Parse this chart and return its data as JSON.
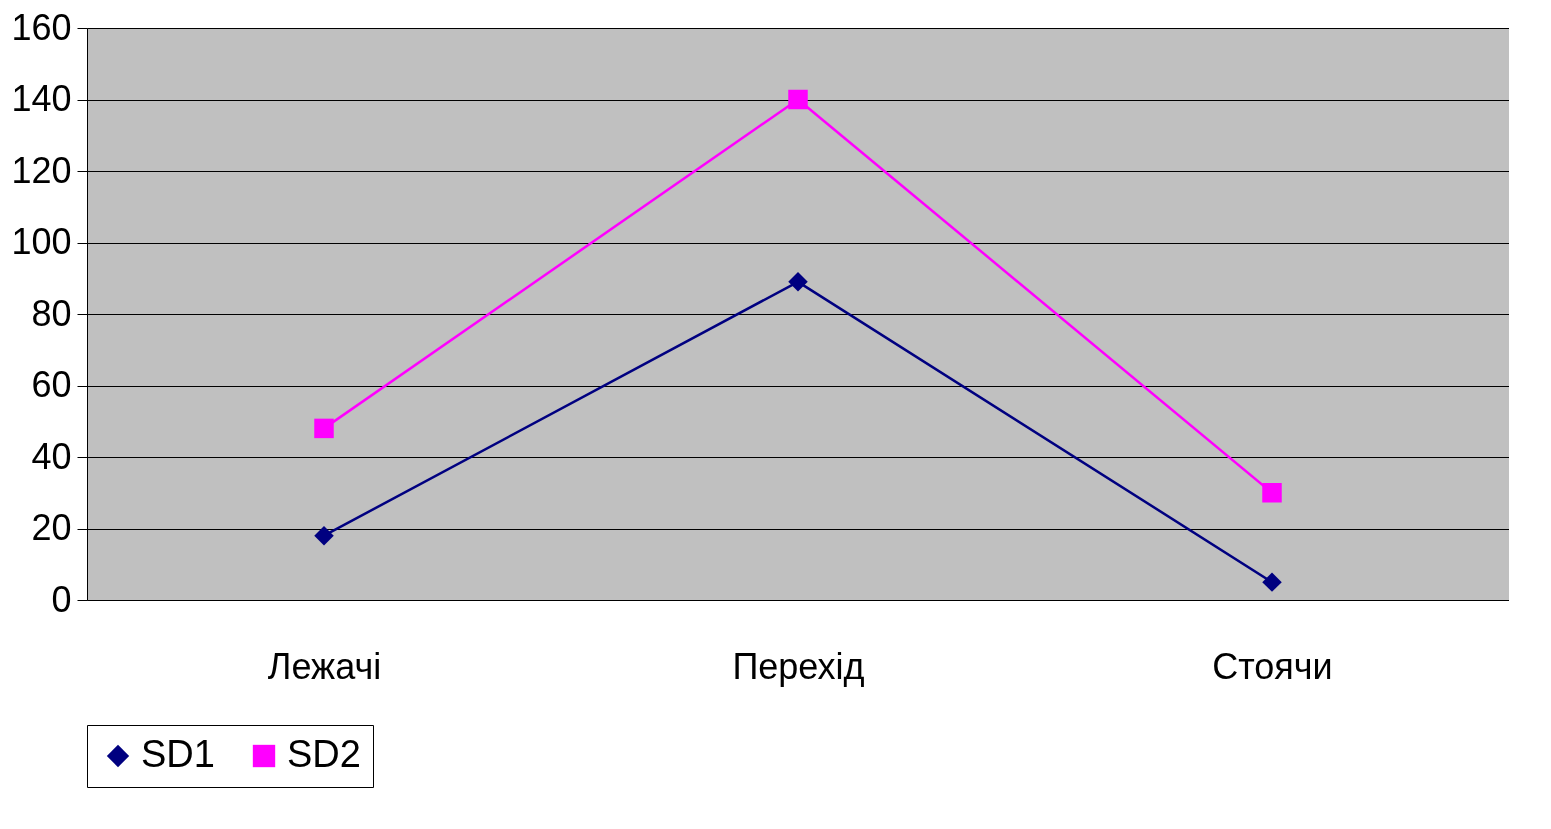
{
  "chart_data": {
    "type": "line",
    "categories": [
      "Лежачі",
      "Перехід",
      "Стоячи"
    ],
    "series": [
      {
        "name": "SD1",
        "color": "#000080",
        "marker": "diamond",
        "values": [
          18,
          89,
          5
        ]
      },
      {
        "name": "SD2",
        "color": "#ff00ff",
        "marker": "square",
        "values": [
          48,
          140,
          30
        ]
      }
    ],
    "ylim": [
      0,
      160
    ],
    "yticks": [
      0,
      20,
      40,
      60,
      80,
      100,
      120,
      140,
      160
    ],
    "grid": "y",
    "legend": "bottom"
  }
}
